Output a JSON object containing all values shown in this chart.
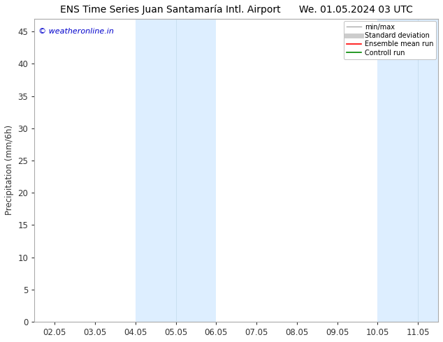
{
  "title_left": "ENS Time Series Juan Santamaría Intl. Airport",
  "title_right": "We. 01.05.2024 03 UTC",
  "ylabel": "Precipitation (mm/6h)",
  "watermark": "© weatheronline.in",
  "watermark_color": "#0000cc",
  "x_labels": [
    "02.05",
    "03.05",
    "04.05",
    "05.05",
    "06.05",
    "07.05",
    "08.05",
    "09.05",
    "10.05",
    "11.05"
  ],
  "x_ticks": [
    0,
    1,
    2,
    3,
    4,
    5,
    6,
    7,
    8,
    9
  ],
  "x_min": -0.5,
  "x_max": 9.5,
  "ylim": [
    0,
    47
  ],
  "yticks": [
    0,
    5,
    10,
    15,
    20,
    25,
    30,
    35,
    40,
    45
  ],
  "background_color": "#ffffff",
  "plot_bg_color": "#ffffff",
  "shaded_bands": [
    {
      "x_start": 2.0,
      "x_end": 4.0,
      "color": "#ddeeff"
    },
    {
      "x_start": 8.0,
      "x_end": 9.5,
      "color": "#ddeeff"
    }
  ],
  "thin_dividers": [
    3.0,
    9.0
  ],
  "legend_items": [
    {
      "label": "min/max",
      "color": "#aaaaaa",
      "lw": 1.0
    },
    {
      "label": "Standard deviation",
      "color": "#cccccc",
      "lw": 5
    },
    {
      "label": "Ensemble mean run",
      "color": "#ff0000",
      "lw": 1.2
    },
    {
      "label": "Controll run",
      "color": "#008800",
      "lw": 1.2
    }
  ],
  "border_color": "#aaaaaa",
  "tick_color": "#333333",
  "font_size": 8.5,
  "title_font_size": 10
}
